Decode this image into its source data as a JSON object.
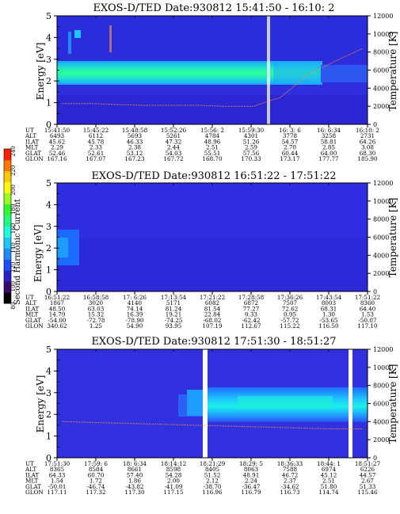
{
  "figure": {
    "colorbar": {
      "label": "Second Harmonic Current",
      "ticks": [
        "80",
        "100",
        "120",
        "140",
        "160",
        "180",
        "200",
        "220",
        "240"
      ],
      "colors": [
        "#000000",
        "#3a0a6e",
        "#2b20c8",
        "#1e4fff",
        "#1e8cff",
        "#1ec8ff",
        "#1effe0",
        "#1eff80",
        "#2dff2d",
        "#9bff1e",
        "#ffff00",
        "#ffc800",
        "#ff7800",
        "#ff1e00"
      ]
    },
    "yleft_label": "Energy [eV]",
    "yright_label": "Temperature [K]",
    "yleft_ticks": [
      "0",
      "1",
      "2",
      "3",
      "4",
      "5"
    ],
    "yright_ticks": [
      "0",
      "2000",
      "4000",
      "6000",
      "8000",
      "10000",
      "12000"
    ]
  },
  "chart_data": [
    {
      "type": "heatmap",
      "title": "EXOS-D/TED   Date:930812  15:41:50 - 16:10: 2",
      "ylabel": "Energy [eV]",
      "ylim": [
        0,
        5
      ],
      "y2label": "Temperature [K]",
      "y2lim": [
        0,
        12000
      ],
      "emission_band_energy_eV": [
        1.9,
        2.9
      ],
      "temperature_trace_K": [
        2300,
        2300,
        2200,
        2100,
        2100,
        2100,
        2000,
        2000,
        3000,
        5500,
        7000,
        8400
      ],
      "table": {
        "labels": [
          "UT",
          "ALT",
          "ILAT",
          "MLT",
          "GLAT",
          "GLON"
        ],
        "columns": [
          [
            "15:41:50",
            "6493",
            "45.62",
            "2.29",
            "52.46",
            "167.16"
          ],
          [
            "15:45:22",
            "6112",
            "45.78",
            "2.33",
            "52.61",
            "167.07"
          ],
          [
            "15:48:58",
            "5693",
            "46.33",
            "2.38",
            "53.12",
            "167.23"
          ],
          [
            "15:52:26",
            "5261",
            "47.32",
            "2.44",
            "54.03",
            "167.72"
          ],
          [
            "15:56: 2",
            "4784",
            "48.96",
            "2.51",
            "55.51",
            "168.70"
          ],
          [
            "15:59:30",
            "4301",
            "51.26",
            "2.59",
            "57.56",
            "170.33"
          ],
          [
            "16: 3: 6",
            "3778",
            "54.57",
            "2.70",
            "60.44",
            "173.17"
          ],
          [
            "16: 6:34",
            "3258",
            "58.81",
            "2.85",
            "64.00",
            "177.77"
          ],
          [
            "16:10: 2",
            "2731",
            "64.26",
            "3.08",
            "68.30",
            "185.90"
          ]
        ]
      }
    },
    {
      "type": "heatmap",
      "title": "EXOS-D/TED   Date:930812  16:51:22 - 17:51:22",
      "ylabel": "Energy [eV]",
      "ylim": [
        0,
        5
      ],
      "y2label": "Temperature [K]",
      "y2lim": [
        0,
        12000
      ],
      "table": {
        "labels": [
          "UT",
          "ALT",
          "ILAT",
          "MLT",
          "GLAT",
          "GLON"
        ],
        "columns": [
          [
            "16:51:22",
            "1867",
            "48.50",
            "14.79",
            "-54.00",
            "340.62"
          ],
          [
            "16:58:58",
            "3020",
            "63.03",
            "15.32",
            "-72.78",
            "1.25"
          ],
          [
            "17: 6:26",
            "4140",
            "74.14",
            "16.39",
            "-78.90",
            "54.90"
          ],
          [
            "17:13:54",
            "5171",
            "81.24",
            "19.21",
            "-74.25",
            "93.95"
          ],
          [
            "17:21:22",
            "6082",
            "81.54",
            "22.84",
            "-68.02",
            "107.19"
          ],
          [
            "17:28:58",
            "6872",
            "77.27",
            "0.33",
            "-62.42",
            "112.67"
          ],
          [
            "17:36:26",
            "7507",
            "72.62",
            "0.95",
            "-57.72",
            "115.22"
          ],
          [
            "17:43:54",
            "8003",
            "68.31",
            "1.30",
            "-53.65",
            "116.50"
          ],
          [
            "17:51:22",
            "8360",
            "64.40",
            "1.53",
            "-50.07",
            "117.10"
          ]
        ]
      }
    },
    {
      "type": "heatmap",
      "title": "EXOS-D/TED   Date:930812  17:51:30 - 18:51:27",
      "ylabel": "Energy [eV]",
      "ylim": [
        0,
        5
      ],
      "y2label": "Temperature [K]",
      "y2lim": [
        0,
        12000
      ],
      "emission_band_energy_eV": [
        1.9,
        2.9
      ],
      "temperature_trace_K": [
        4000,
        3900,
        3800,
        3700,
        3600,
        3500,
        3400,
        3300,
        3200,
        3200
      ],
      "table": {
        "labels": [
          "UT",
          "ALT",
          "ILAT",
          "MLT",
          "GLAT",
          "GLON"
        ],
        "columns": [
          [
            "17:51:30",
            "8365",
            "64.33",
            "1.54",
            "-50.01",
            "117.11"
          ],
          [
            "17:59: 6",
            "8584",
            "60.70",
            "1.72",
            "-46.74",
            "117.32"
          ],
          [
            "18: 6:34",
            "8661",
            "57.40",
            "1.86",
            "-43.82",
            "117.30"
          ],
          [
            "18:14:12",
            "8598",
            "54.28",
            "2.00",
            "-41.09",
            "117.15"
          ],
          [
            "18:21:29",
            "8405",
            "51.52",
            "2.12",
            "-38.70",
            "116.96"
          ],
          [
            "18:29: 5",
            "8063",
            "48.91",
            "2.24",
            "-36.47",
            "116.79"
          ],
          [
            "18:36:33",
            "7588",
            "46.72",
            "2.37",
            "-34.62",
            "116.73"
          ],
          [
            "18:44: 1",
            "6974",
            "45.12",
            "2.51",
            "51.80",
            "114.74"
          ],
          [
            "18:51:27",
            "6226",
            "44.57",
            "2.67",
            "51.33",
            "115.46"
          ]
        ]
      }
    }
  ]
}
